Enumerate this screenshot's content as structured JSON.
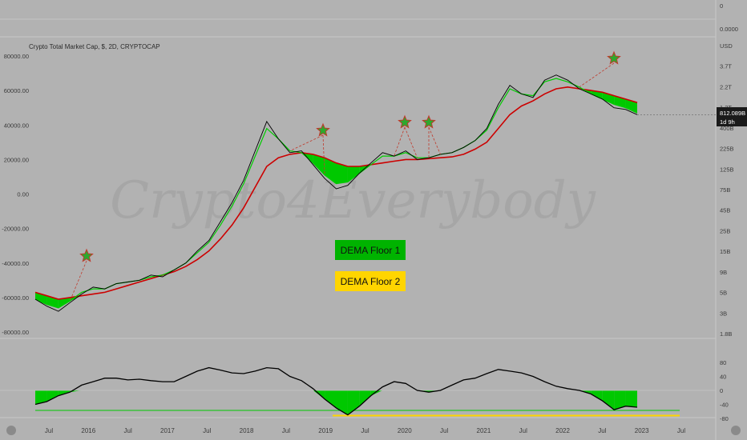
{
  "chart_data": [
    {
      "type": "line",
      "title": "Crypto Total Market Cap, $, 2D, CRYPTOCAP",
      "watermark": "Crypto4Everybody",
      "x_labels": [
        "Jul",
        "2016",
        "Jul",
        "2017",
        "Jul",
        "2018",
        "Jul",
        "2019",
        "Jul",
        "2020",
        "Jul",
        "2021",
        "Jul",
        "2022",
        "Jul",
        "2023",
        "Jul"
      ],
      "left_y_ticks": [
        "80000.00",
        "60000.00",
        "40000.00",
        "20000.00",
        "0.00",
        "-20000.00",
        "-40000.00",
        "-60000.00",
        "-80000.00"
      ],
      "right_y_ticks": [
        "USD",
        "3.7T",
        "2.2T",
        "1.2T",
        "400B",
        "225B",
        "125B",
        "75B",
        "45B",
        "25B",
        "15B",
        "9B",
        "5B",
        "3B",
        "1.8B"
      ],
      "top_pane_ticks": [
        "0",
        "0.0000"
      ],
      "last_price": "812.089B",
      "last_price_countdown": "1d 9h",
      "legend": [
        "DEMA Floor 1",
        "DEMA Floor 2"
      ],
      "colors": {
        "price": "#000000",
        "fast_dema": "#00cc00",
        "slow_dema": "#cc0000",
        "fill": "#00c800",
        "floor2": "#ffd500",
        "star": "#2ea82e",
        "star_outline": "#c0392b"
      },
      "series": [
        {
          "name": "Price",
          "values": [
            -61000,
            -65000,
            -68000,
            -63000,
            -58000,
            -54000,
            -55000,
            -52000,
            -51000,
            -50000,
            -47000,
            -48000,
            -44000,
            -40000,
            -33000,
            -27000,
            -16000,
            -5000,
            8000,
            25000,
            42000,
            32000,
            24000,
            25000,
            17000,
            9000,
            3000,
            5000,
            12000,
            18000,
            24000,
            22000,
            25000,
            20000,
            21000,
            23000,
            24000,
            27000,
            31000,
            38000,
            52000,
            63000,
            58000,
            56000,
            66000,
            69000,
            66000,
            61000,
            58000,
            55000,
            50000,
            49000,
            46000
          ]
        },
        {
          "name": "Fast DEMA",
          "values": [
            -61000,
            -64000,
            -66000,
            -62000,
            -57000,
            -55000,
            -55000,
            -52000,
            -51000,
            -50000,
            -48000,
            -47000,
            -44000,
            -40000,
            -34000,
            -28000,
            -18000,
            -7000,
            6000,
            22000,
            38000,
            32000,
            25000,
            24000,
            18000,
            11000,
            6000,
            7000,
            12000,
            17000,
            22000,
            22000,
            24000,
            21000,
            21000,
            23000,
            24000,
            27000,
            31000,
            37000,
            50000,
            61000,
            58000,
            57000,
            65000,
            67000,
            65000,
            62000,
            58000,
            55000,
            52000,
            50000,
            47000
          ]
        },
        {
          "name": "Slow DEMA",
          "values": [
            -57000,
            -59000,
            -61000,
            -60000,
            -59000,
            -58000,
            -57000,
            -55000,
            -53000,
            -51000,
            -49000,
            -47000,
            -45000,
            -42000,
            -38000,
            -33000,
            -26000,
            -18000,
            -8000,
            4000,
            16000,
            21000,
            23000,
            24000,
            23000,
            21000,
            18000,
            16000,
            16000,
            17000,
            18000,
            19000,
            20000,
            20000,
            20500,
            21000,
            21500,
            23000,
            26000,
            30000,
            38000,
            46000,
            51000,
            54000,
            58000,
            61000,
            62000,
            61000,
            60000,
            59000,
            57000,
            55000,
            53000
          ]
        }
      ],
      "oscillator": {
        "ticks": [
          "80",
          "40",
          "0",
          "-40",
          "-80"
        ],
        "ylim": [
          -80,
          80
        ],
        "values": [
          -40,
          -32,
          -15,
          -5,
          15,
          25,
          35,
          35,
          30,
          32,
          28,
          25,
          25,
          40,
          55,
          65,
          58,
          50,
          48,
          55,
          65,
          62,
          40,
          28,
          5,
          -25,
          -50,
          -70,
          -45,
          -15,
          10,
          25,
          20,
          0,
          -5,
          0,
          15,
          30,
          35,
          48,
          60,
          55,
          50,
          40,
          25,
          12,
          5,
          0,
          -10,
          -30,
          -55,
          -45,
          -48
        ],
        "floor1": -57,
        "floor2": -72
      }
    }
  ]
}
